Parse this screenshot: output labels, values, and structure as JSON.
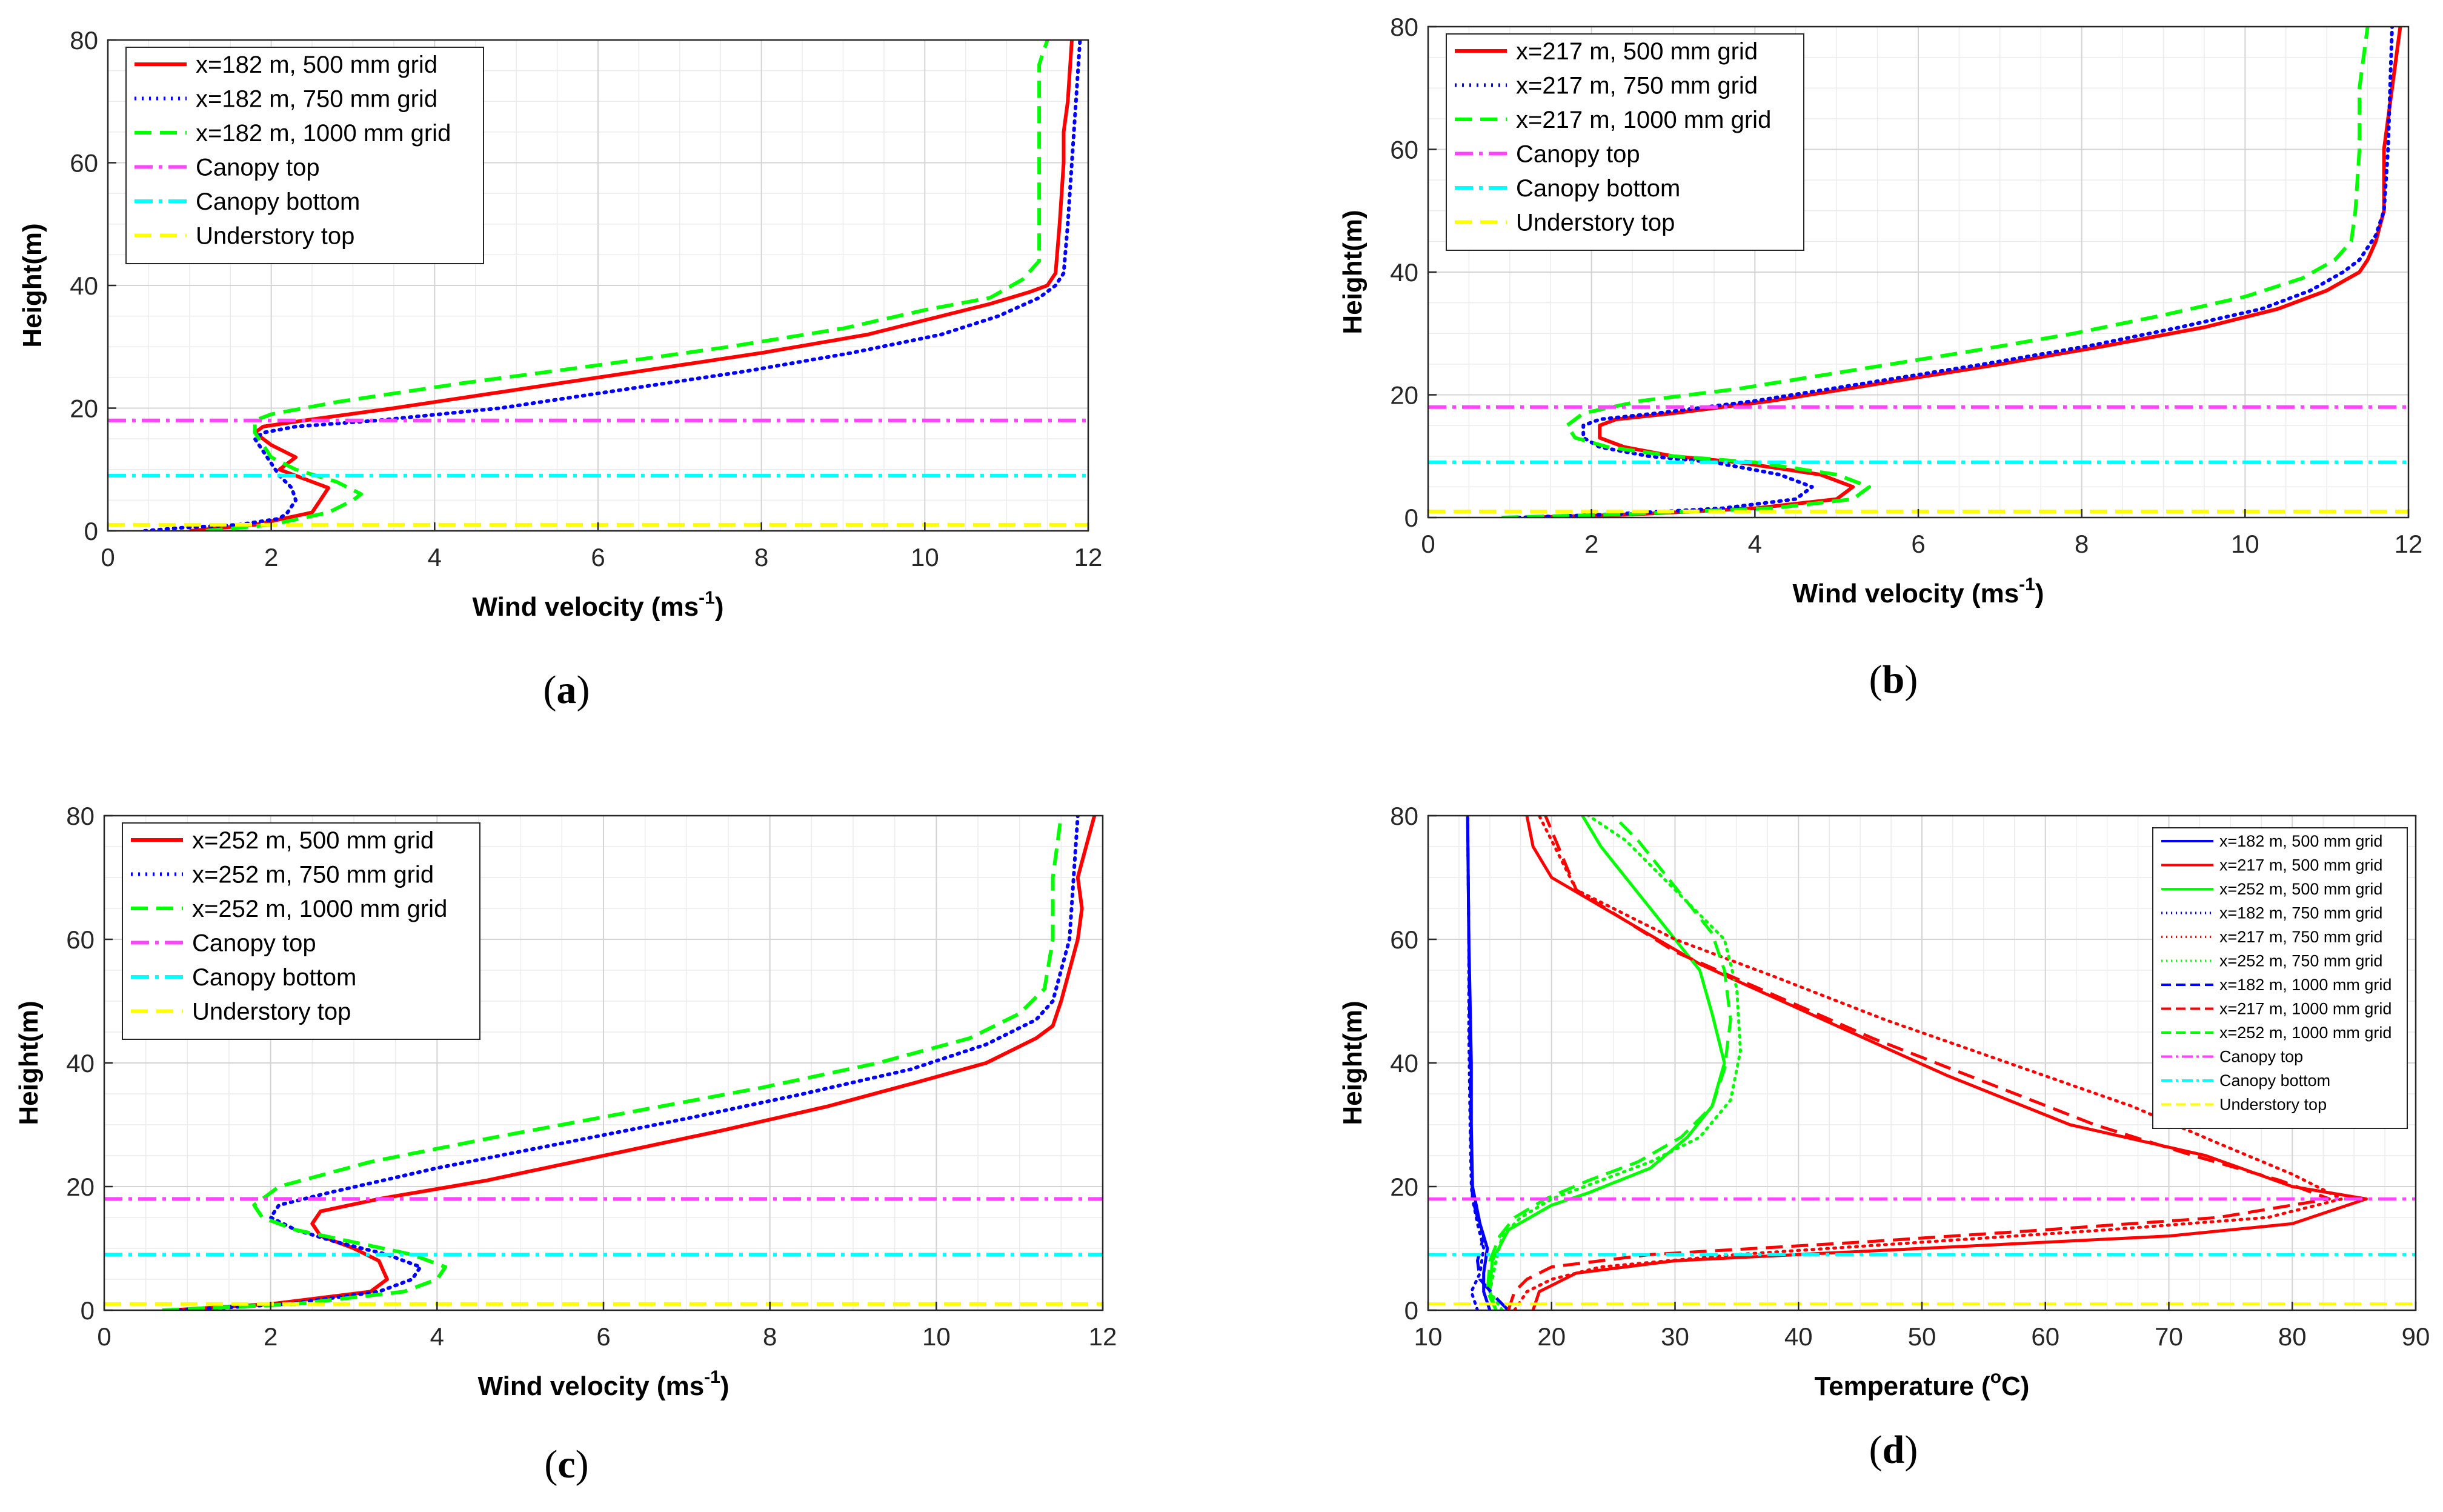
{
  "chart_data": [
    {
      "type": "line",
      "panel_label": [
        "(",
        "a",
        ")"
      ],
      "xlabel": "Wind velocity",
      "xlabel_unit": [
        "(ms",
        "-1",
        ")"
      ],
      "ylabel": "Height(m)",
      "xlim": [
        0,
        12
      ],
      "ylim": [
        0,
        80
      ],
      "xticks": [
        0,
        2,
        4,
        6,
        8,
        10,
        12
      ],
      "yticks": [
        0,
        20,
        40,
        60,
        80
      ],
      "grid": true,
      "legend_position": "top-left",
      "series": [
        {
          "name": "x=182 m, 500 mm grid",
          "color": "#ff0000",
          "style": "solid",
          "x": [
            1.0,
            1.8,
            2.5,
            2.6,
            2.7,
            2.5,
            2.1,
            2.3,
            2.0,
            1.8,
            1.9,
            2.4,
            3.5,
            5.0,
            6.5,
            8.0,
            9.3,
            10.2,
            10.8,
            11.3,
            11.5,
            11.6,
            11.65,
            11.7,
            11.7,
            11.75,
            11.8
          ],
          "y": [
            0,
            1,
            3,
            5,
            7,
            8,
            10,
            12,
            14,
            16,
            17,
            18,
            20,
            23,
            26,
            29,
            32,
            35,
            37,
            39,
            40,
            42,
            50,
            60,
            65,
            70,
            80
          ]
        },
        {
          "name": "x=182 m, 750 mm grid",
          "color": "#0000ff",
          "style": "dotted",
          "x": [
            0.45,
            0.9,
            1.6,
            2.1,
            2.2,
            2.3,
            2.25,
            2.1,
            2.0,
            1.9,
            1.8,
            1.9,
            2.3,
            3.3,
            4.8,
            6.3,
            7.8,
            9.1,
            10.2,
            10.9,
            11.4,
            11.6,
            11.7,
            11.75,
            11.8,
            11.85,
            11.9
          ],
          "y": [
            0,
            0.5,
            1,
            2,
            3,
            5,
            7,
            9,
            11,
            13,
            15,
            16,
            17,
            18,
            20,
            23,
            26,
            29,
            32,
            35,
            38,
            40,
            42,
            50,
            60,
            70,
            80
          ]
        },
        {
          "name": "x=182 m, 1000 mm grid",
          "color": "#00ff00",
          "style": "dashed",
          "x": [
            1.2,
            2.0,
            2.7,
            3.0,
            3.1,
            2.8,
            2.3,
            2.0,
            1.9,
            1.8,
            1.8,
            2.0,
            2.8,
            4.3,
            6.0,
            7.6,
            9.0,
            10.0,
            10.8,
            11.2,
            11.4,
            11.4,
            11.4,
            11.4,
            11.4,
            11.5
          ],
          "y": [
            0,
            1,
            3,
            5,
            6,
            8,
            10,
            12,
            14,
            16,
            18,
            19,
            21,
            24,
            27,
            30,
            33,
            36,
            38,
            41,
            44,
            50,
            60,
            70,
            76,
            80
          ]
        },
        {
          "name": "Canopy top",
          "color": "#ff44ff",
          "style": "dashdot",
          "y_const": 18
        },
        {
          "name": "Canopy bottom",
          "color": "#00ffff",
          "style": "dashdot",
          "y_const": 9
        },
        {
          "name": "Understory top",
          "color": "#ffff00",
          "style": "dashed",
          "y_const": 1
        }
      ]
    },
    {
      "type": "line",
      "panel_label": [
        "(",
        "b",
        ")"
      ],
      "xlabel": "Wind velocity",
      "xlabel_unit": [
        "(ms",
        "-1",
        ")"
      ],
      "ylabel": "Height(m)",
      "xlim": [
        0,
        12
      ],
      "ylim": [
        0,
        80
      ],
      "xticks": [
        0,
        2,
        4,
        6,
        8,
        10,
        12
      ],
      "yticks": [
        0,
        20,
        40,
        60,
        80
      ],
      "grid": true,
      "legend_position": "top-left",
      "series": [
        {
          "name": "x=217 m, 500 mm grid",
          "color": "#ff0000",
          "style": "solid",
          "x": [
            1.2,
            2.5,
            4.0,
            5.0,
            5.2,
            4.8,
            3.8,
            3.0,
            2.4,
            2.1,
            2.1,
            2.3,
            3.0,
            4.2,
            5.6,
            7.0,
            8.3,
            9.5,
            10.4,
            11.0,
            11.4,
            11.5,
            11.6,
            11.7,
            11.7,
            11.8,
            11.9
          ],
          "y": [
            0,
            0.5,
            1.5,
            3,
            5,
            7,
            9,
            10,
            11.5,
            13,
            15,
            16,
            17,
            19,
            22,
            25,
            28,
            31,
            34,
            37,
            40,
            42,
            45,
            50,
            60,
            70,
            80
          ]
        },
        {
          "name": "x=217 m, 750 mm grid",
          "color": "#0000ff",
          "style": "dotted",
          "x": [
            1.1,
            2.2,
            3.6,
            4.5,
            4.7,
            4.3,
            3.5,
            2.7,
            2.1,
            1.9,
            1.9,
            2.1,
            2.8,
            4.0,
            5.4,
            6.8,
            8.1,
            9.2,
            10.2,
            10.8,
            11.2,
            11.4,
            11.6,
            11.7,
            11.75,
            11.8
          ],
          "y": [
            0,
            0.5,
            1.5,
            3,
            5,
            7,
            9,
            10,
            11.5,
            13,
            15,
            16,
            17,
            19,
            22,
            25,
            28,
            31,
            34,
            37,
            40,
            42,
            46,
            50,
            60,
            80
          ]
        },
        {
          "name": "x=217 m, 1000 mm grid",
          "color": "#00ff00",
          "style": "dashed",
          "x": [
            0.9,
            2.3,
            4.2,
            5.2,
            5.4,
            5.0,
            4.0,
            3.0,
            2.2,
            1.8,
            1.7,
            1.9,
            2.6,
            3.8,
            5.2,
            6.6,
            7.9,
            9.0,
            10.0,
            10.7,
            11.1,
            11.3,
            11.35,
            11.4,
            11.4,
            11.5
          ],
          "y": [
            0,
            0.5,
            1.5,
            3,
            5,
            7,
            9,
            10,
            11.5,
            13,
            15,
            17,
            19,
            21,
            24,
            27,
            30,
            33,
            36,
            39,
            42,
            45,
            50,
            60,
            70,
            80
          ]
        },
        {
          "name": "Canopy top",
          "color": "#ff44ff",
          "style": "dashdot",
          "y_const": 18
        },
        {
          "name": "Canopy bottom",
          "color": "#00ffff",
          "style": "dashdot",
          "y_const": 9
        },
        {
          "name": "Understory top",
          "color": "#ffff00",
          "style": "dashed",
          "y_const": 1
        }
      ]
    },
    {
      "type": "line",
      "panel_label": [
        "(",
        "c",
        ")"
      ],
      "xlabel": "Wind velocity",
      "xlabel_unit": [
        "(ms",
        "-1",
        ")"
      ],
      "ylabel": "Height(m)",
      "xlim": [
        0,
        12
      ],
      "ylim": [
        0,
        80
      ],
      "xticks": [
        0,
        2,
        4,
        6,
        8,
        10,
        12
      ],
      "yticks": [
        0,
        20,
        40,
        60,
        80
      ],
      "grid": true,
      "legend_position": "top-left",
      "series": [
        {
          "name": "x=252 m, 500 mm grid",
          "color": "#ff0000",
          "style": "solid",
          "x": [
            0.8,
            2.0,
            3.2,
            3.4,
            3.3,
            3.0,
            2.6,
            2.5,
            2.6,
            3.3,
            4.6,
            6.0,
            7.4,
            8.7,
            9.8,
            10.6,
            11.2,
            11.4,
            11.5,
            11.6,
            11.7,
            11.75,
            11.7,
            11.8,
            11.9
          ],
          "y": [
            0,
            1,
            3,
            5,
            8,
            10,
            12,
            14,
            16,
            18,
            21,
            25,
            29,
            33,
            37,
            40,
            44,
            46,
            50,
            55,
            60,
            65,
            70,
            75,
            80
          ]
        },
        {
          "name": "x=252 m, 750 mm grid",
          "color": "#0000ff",
          "style": "dotted",
          "x": [
            0.9,
            2.2,
            3.3,
            3.7,
            3.8,
            3.4,
            2.8,
            2.3,
            2.0,
            2.1,
            2.7,
            4.0,
            5.5,
            7.0,
            8.4,
            9.7,
            10.6,
            11.2,
            11.4,
            11.5,
            11.6,
            11.65,
            11.7
          ],
          "y": [
            0,
            1,
            3,
            5,
            7,
            9,
            11,
            13,
            15,
            17,
            19,
            23,
            27,
            31,
            35,
            39,
            43,
            47,
            50,
            55,
            60,
            70,
            80
          ]
        },
        {
          "name": "x=252 m, 1000 mm grid",
          "color": "#00ff00",
          "style": "dashed",
          "x": [
            0.7,
            2.3,
            3.6,
            4.0,
            4.1,
            3.7,
            3.0,
            2.3,
            1.9,
            1.8,
            2.1,
            3.2,
            4.7,
            6.3,
            7.9,
            9.3,
            10.4,
            11.0,
            11.3,
            11.4,
            11.4,
            11.5
          ],
          "y": [
            0,
            1,
            3,
            5,
            7,
            9,
            11,
            13,
            15,
            17,
            20,
            24,
            28,
            32,
            36,
            40,
            44,
            48,
            52,
            60,
            70,
            80
          ]
        },
        {
          "name": "Canopy top",
          "color": "#ff44ff",
          "style": "dashdot",
          "y_const": 18
        },
        {
          "name": "Canopy bottom",
          "color": "#00ffff",
          "style": "dashdot",
          "y_const": 9
        },
        {
          "name": "Understory top",
          "color": "#ffff00",
          "style": "dashed",
          "y_const": 1
        }
      ]
    },
    {
      "type": "line",
      "panel_label": [
        "(",
        "d",
        ")"
      ],
      "xlabel": "Temperature",
      "xlabel_unit": [
        "(",
        "o",
        "C)"
      ],
      "ylabel": "Height(m)",
      "xlim": [
        10,
        90
      ],
      "ylim": [
        0,
        80
      ],
      "xticks": [
        10,
        20,
        30,
        40,
        50,
        60,
        70,
        80,
        90
      ],
      "yticks": [
        0,
        20,
        40,
        60,
        80
      ],
      "grid": true,
      "legend_position": "top-right",
      "legend_small": true,
      "series": [
        {
          "name": "x=182 m, 500 mm grid",
          "color": "#0000ff",
          "style": "solid",
          "x": [
            15.0,
            14.5,
            14.5,
            14.8,
            14.2,
            13.8,
            13.6,
            13.5,
            13.5,
            13.4,
            13.3,
            13.2
          ],
          "y": [
            0,
            3,
            6,
            10,
            14,
            18,
            20,
            30,
            40,
            50,
            60,
            80
          ]
        },
        {
          "name": "x=217 m, 500 mm grid",
          "color": "#ff0000",
          "style": "solid",
          "x": [
            18.5,
            19,
            22,
            30,
            50,
            70,
            80,
            86,
            80,
            73,
            62,
            52,
            42,
            32,
            20,
            18.5,
            18
          ],
          "y": [
            0,
            3,
            6,
            8,
            10,
            12,
            14,
            18,
            20,
            25,
            30,
            38,
            47,
            56,
            70,
            75,
            80
          ]
        },
        {
          "name": "x=252 m, 500 mm grid",
          "color": "#00ff00",
          "style": "solid",
          "x": [
            15.5,
            15,
            15.2,
            16.5,
            20,
            23,
            28,
            31,
            33,
            34,
            33,
            32,
            30,
            28,
            26,
            24,
            22.5
          ],
          "y": [
            0,
            3,
            8,
            13,
            17,
            19,
            23,
            28,
            33,
            40,
            48,
            55,
            60,
            65,
            70,
            75,
            80
          ]
        },
        {
          "name": "x=182 m, 750 mm grid",
          "color": "#0000ff",
          "style": "dotted",
          "x": [
            14.0,
            13.5,
            14.2,
            14.5,
            14.0,
            13.6,
            13.5,
            13.4,
            13.3,
            13.3,
            13.2
          ],
          "y": [
            0,
            3,
            6,
            10,
            14,
            18,
            20,
            30,
            45,
            60,
            80
          ]
        },
        {
          "name": "x=217 m, 750 mm grid",
          "color": "#ff0000",
          "style": "dotted",
          "x": [
            17,
            18,
            20,
            24,
            35,
            50,
            65,
            78,
            84,
            80,
            74,
            67,
            57,
            47,
            38,
            30,
            22,
            19
          ],
          "y": [
            0,
            3,
            5,
            7,
            9,
            11,
            13,
            15,
            18,
            22,
            27,
            33,
            40,
            47,
            54,
            60,
            68,
            80
          ]
        },
        {
          "name": "x=252 m, 750 mm grid",
          "color": "#00ff00",
          "style": "dotted",
          "x": [
            16,
            15,
            15.5,
            16,
            17.5,
            20,
            24,
            28,
            32,
            34.5,
            35.3,
            35,
            34,
            32,
            30,
            28,
            26,
            23
          ],
          "y": [
            0,
            3,
            8,
            12,
            15,
            18,
            21,
            24,
            28,
            34,
            42,
            52,
            60,
            64,
            68,
            72,
            76,
            80
          ]
        },
        {
          "name": "x=182 m, 1000 mm grid",
          "color": "#0000ff",
          "style": "dashed",
          "x": [
            16.5,
            15.5,
            14.2,
            14.0,
            14.5,
            14.0,
            13.6,
            13.5,
            13.4,
            13.3,
            13.2
          ],
          "y": [
            0,
            2,
            5,
            8,
            12,
            15,
            18,
            25,
            40,
            60,
            80
          ]
        },
        {
          "name": "x=217 m, 1000 mm grid",
          "color": "#ff0000",
          "style": "dashed",
          "x": [
            16.5,
            17,
            18,
            20,
            28,
            45,
            60,
            74,
            83,
            79,
            72,
            64,
            55,
            46,
            38,
            30,
            22,
            19.5
          ],
          "y": [
            0,
            3,
            5,
            7,
            9,
            11,
            13,
            15,
            18,
            21,
            25,
            30,
            37,
            44,
            51,
            58,
            68,
            80
          ]
        },
        {
          "name": "x=252 m, 1000 mm grid",
          "color": "#00ff00",
          "style": "dashed",
          "x": [
            15.5,
            14.8,
            15,
            15.8,
            17,
            19.5,
            23,
            27,
            30.5,
            33,
            34,
            34.5,
            34,
            33,
            31,
            29,
            27,
            25
          ],
          "y": [
            0,
            3,
            8,
            12,
            15,
            18,
            21,
            24,
            28,
            33,
            39,
            47,
            55,
            61,
            66,
            71,
            76,
            80
          ]
        },
        {
          "name": "Canopy top",
          "color": "#ff44ff",
          "style": "dashdot",
          "y_const": 18
        },
        {
          "name": "Canopy bottom",
          "color": "#00ffff",
          "style": "dashdot",
          "y_const": 9
        },
        {
          "name": "Understory top",
          "color": "#ffff00",
          "style": "dashed",
          "y_const": 1
        }
      ]
    }
  ]
}
